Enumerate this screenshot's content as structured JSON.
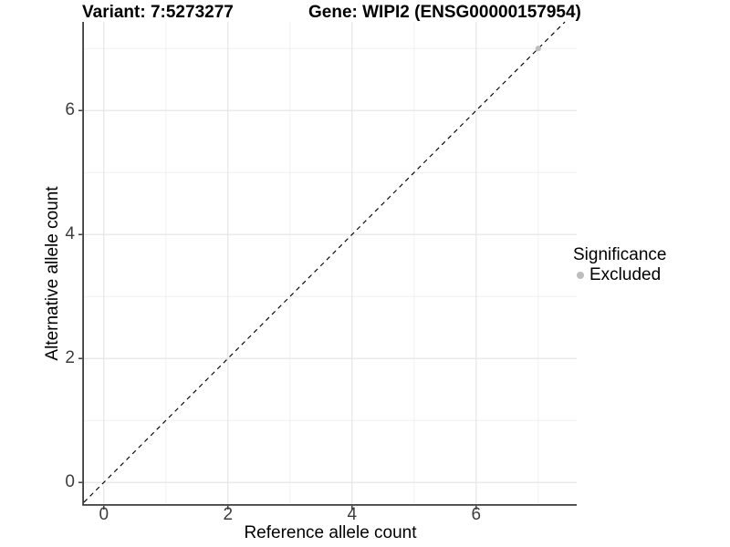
{
  "header": {
    "title_left": "Variant: 7:5273277",
    "title_right": "Gene: WIPI2 (ENSG00000157954)"
  },
  "chart_data": {
    "type": "scatter",
    "title": "Variant: 7:5273277   Gene: WIPI2 (ENSG00000157954)",
    "xlabel": "Reference allele count",
    "ylabel": "Alternative allele count",
    "xlim": [
      -0.32,
      7.62
    ],
    "ylim": [
      -0.35,
      7.43
    ],
    "x_major_ticks": [
      0,
      2,
      4,
      6
    ],
    "y_major_ticks": [
      0,
      2,
      4,
      6
    ],
    "x_minor_gridlines": [
      1,
      3,
      5,
      7
    ],
    "y_minor_gridlines": [
      1,
      3,
      5,
      7
    ],
    "grid": "major+minor",
    "series": [
      {
        "name": "Excluded",
        "points": [
          {
            "x": 7,
            "y": 7
          }
        ],
        "color": "#bdbdbd"
      }
    ],
    "reference_line": {
      "type": "abline",
      "slope": 1,
      "intercept": 0,
      "style": "dashed",
      "color": "#000000"
    },
    "legend": {
      "title": "Significance",
      "position": "right",
      "items": [
        {
          "label": "Excluded",
          "color": "#bdbdbd",
          "marker": "circle"
        }
      ]
    },
    "colors": {
      "background": "#ffffff",
      "grid_major": "#e4e4e4",
      "grid_minor": "#f1f1f1",
      "axis_line": "#3d3d3d",
      "tick_mark": "#333333",
      "tick_text": "#3d3d3d",
      "point": "#bdbdbd"
    }
  }
}
